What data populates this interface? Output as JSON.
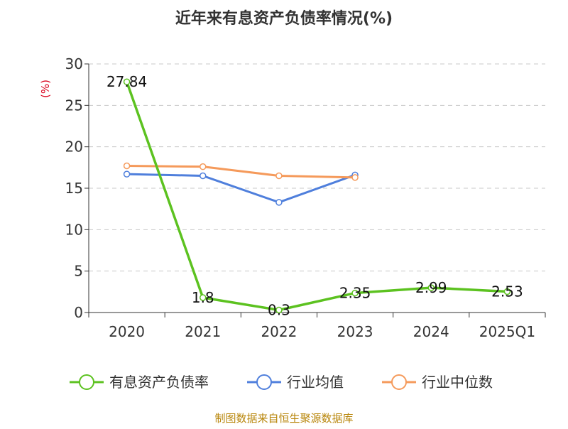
{
  "chart_data": {
    "type": "line",
    "title": "近年来有息资产负债率情况(%)",
    "ylabel": "(%)",
    "xlabel": "",
    "categories": [
      "2020",
      "2021",
      "2022",
      "2023",
      "2024",
      "2025Q1"
    ],
    "ylim": [
      0,
      30
    ],
    "yticks": [
      "0",
      "5",
      "10",
      "15",
      "20",
      "25",
      "30"
    ],
    "grid": true,
    "legend_position": "bottom",
    "series": [
      {
        "name": "有息资产负债率",
        "color": "#5cc220",
        "values": [
          27.84,
          1.8,
          0.3,
          2.35,
          2.99,
          2.53
        ],
        "labels": [
          "27.84",
          "1.8",
          "0.3",
          "2.35",
          "2.99",
          "2.53"
        ]
      },
      {
        "name": "行业均值",
        "color": "#4f7fdc",
        "values": [
          16.7,
          16.5,
          13.3,
          16.6,
          null,
          null
        ]
      },
      {
        "name": "行业中位数",
        "color": "#f59a5b",
        "values": [
          17.7,
          17.6,
          16.5,
          16.3,
          null,
          null
        ]
      }
    ]
  },
  "footer": {
    "source": "制图数据来自恒生聚源数据库"
  }
}
